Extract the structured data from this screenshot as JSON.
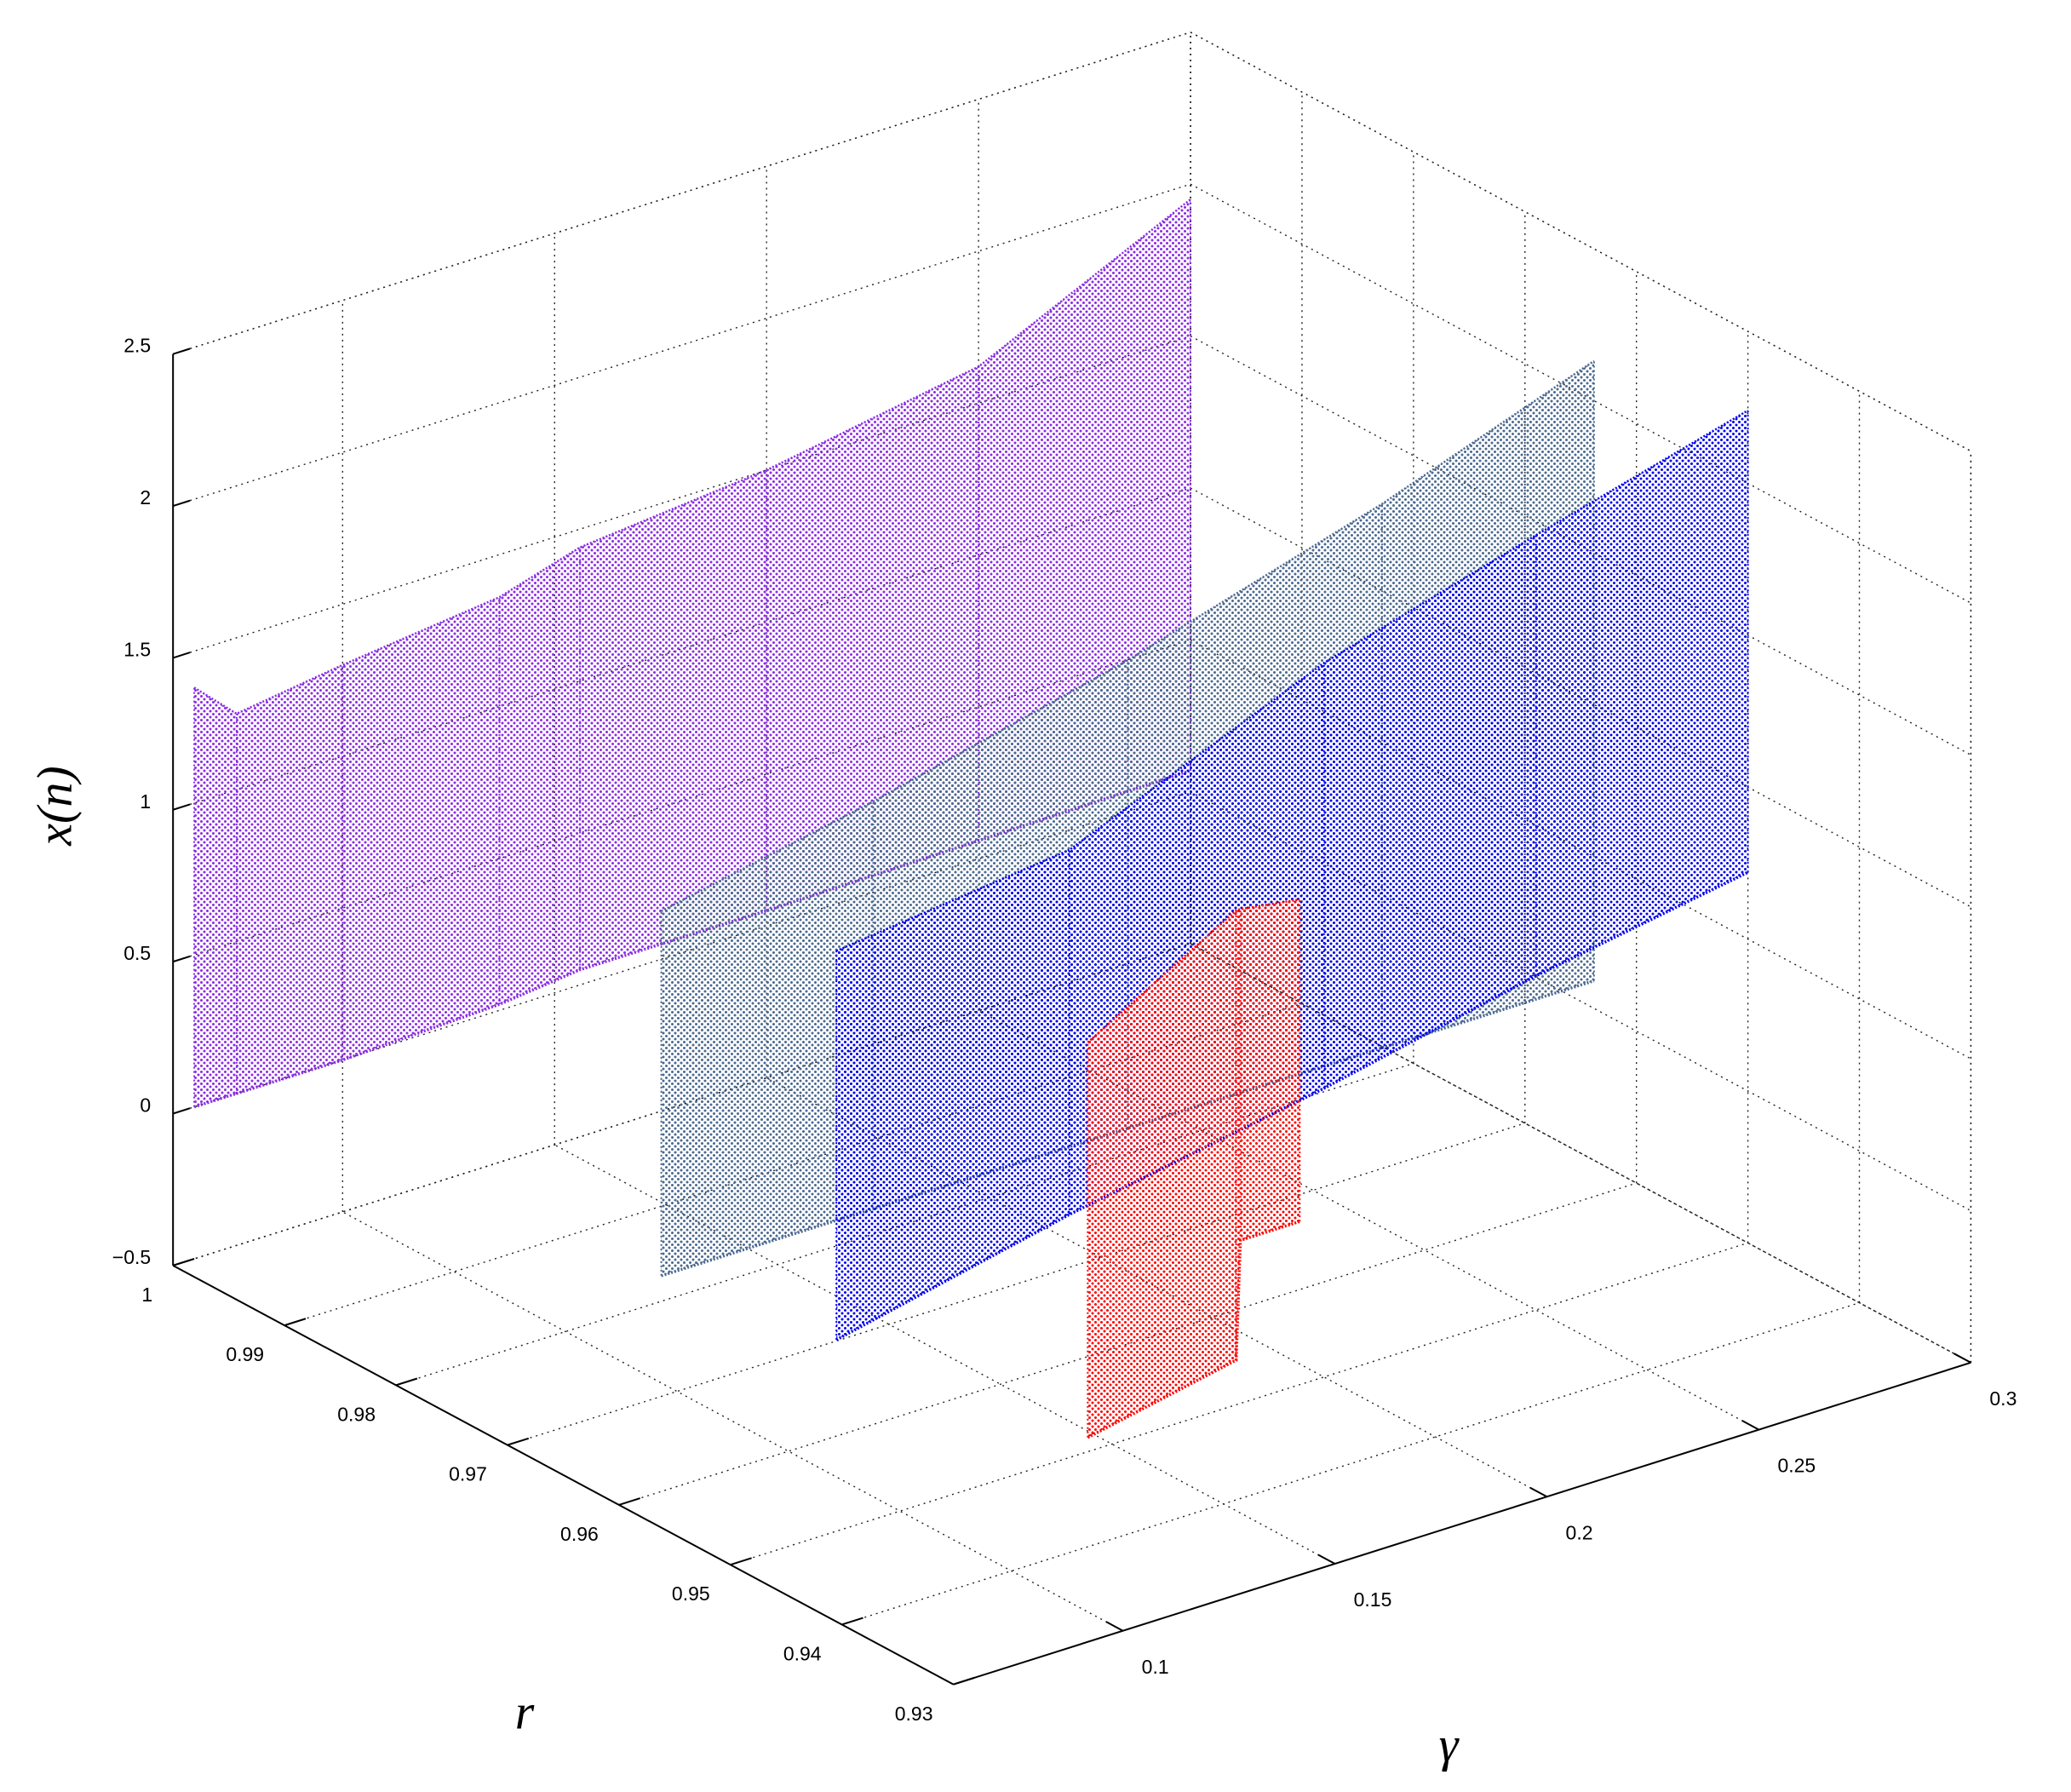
{
  "chart_data": {
    "type": "scatter3d",
    "xlabel": "r",
    "ylabel": "γ",
    "zlabel": "x(n)",
    "xlim": [
      0.93,
      1
    ],
    "xticks": [
      0.93,
      0.94,
      0.95,
      0.96,
      0.97,
      0.98,
      0.99,
      1
    ],
    "ylim": [
      0.06,
      0.3
    ],
    "yticks": [
      0.1,
      0.15,
      0.2,
      0.25,
      0.3
    ],
    "zlim": [
      -0.5,
      2.5
    ],
    "zticks": [
      {
        "value": -0.5,
        "label": "−0.5"
      },
      0,
      0.5,
      1,
      1.5,
      2,
      2.5
    ],
    "grid": true,
    "series": [
      {
        "color": "#8a2be2",
        "r": 1,
        "gamma": [
          0.065,
          0.075,
          0.1,
          0.137,
          0.156,
          0.2,
          0.25,
          0.3
        ],
        "upper": [
          1.38,
          1.25,
          1.3,
          1.36,
          1.44,
          1.5,
          1.62,
          1.95
        ],
        "lower": [
          0,
          0,
          0,
          0.02,
          0.05,
          0.05,
          0.06,
          0.07
        ]
      },
      {
        "color": "#4a6890",
        "r": 0.96,
        "gamma": [
          0.07,
          0.12,
          0.18,
          0.24,
          0.29
        ],
        "upper": [
          1.41,
          1.55,
          1.75,
          2,
          2.25
        ],
        "lower": [
          0.21,
          0.21,
          0.21,
          0.21,
          0.21
        ]
      },
      {
        "color": "#0000ee",
        "r": 0.95,
        "gamma": [
          0.085,
          0.14,
          0.2,
          0.25,
          0.3
        ],
        "upper": [
          1.41,
          1.5,
          1.85,
          2.05,
          2.24
        ],
        "lower": [
          0.13,
          0.3,
          0.45,
          0.6,
          0.72
        ]
      },
      {
        "color": "#ff0000",
        "r": 0.94,
        "gamma": [
          0.118,
          0.153,
          0.154,
          0.168
        ],
        "upper": [
          1.16,
          1.44,
          1.44,
          1.41
        ],
        "lower": [
          -0.14,
          -0.04,
          0.35,
          0.35
        ]
      }
    ]
  }
}
